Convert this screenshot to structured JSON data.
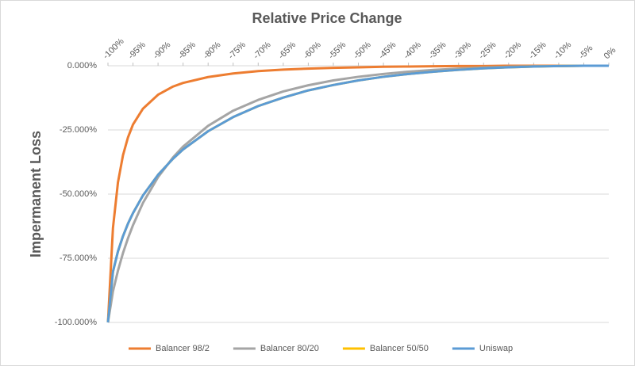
{
  "chart_data": {
    "type": "line",
    "title": "Relative Price Change",
    "y_label": "Impermanent Loss",
    "x": [
      -100,
      -99,
      -98,
      -97,
      -96,
      -95,
      -93,
      -90,
      -87,
      -85,
      -80,
      -75,
      -70,
      -65,
      -60,
      -55,
      -50,
      -45,
      -40,
      -35,
      -30,
      -25,
      -20,
      -15,
      -10,
      -5,
      0
    ],
    "series": [
      {
        "name": "Balancer 98/2",
        "color": "#ED7D31",
        "values": [
          -100,
          -63.2,
          -45.4,
          -34.9,
          -27.9,
          -22.9,
          -16.7,
          -11.3,
          -8.1,
          -6.7,
          -4.4,
          -3.0,
          -2.1,
          -1.5,
          -1.1,
          -0.8,
          -0.6,
          -0.4,
          -0.3,
          -0.2,
          -0.1,
          -0.1,
          0,
          0,
          0,
          0,
          0
        ]
      },
      {
        "name": "Balancer 80/20",
        "color": "#A5A5A5",
        "values": [
          -100,
          -87.9,
          -79.8,
          -73.0,
          -67.2,
          -62.1,
          -53.4,
          -43.4,
          -35.7,
          -31.5,
          -23.4,
          -17.5,
          -13.3,
          -10.0,
          -7.6,
          -5.7,
          -4.3,
          -3.2,
          -2.3,
          -1.6,
          -1.1,
          -0.7,
          -0.4,
          -0.2,
          -0.1,
          0,
          0
        ]
      },
      {
        "name": "Balancer 50/50",
        "color": "#FFC000",
        "values": [
          -100,
          -80.2,
          -72.3,
          -66.4,
          -61.5,
          -57.4,
          -50.5,
          -42.5,
          -36.2,
          -32.6,
          -25.5,
          -20.0,
          -15.7,
          -12.4,
          -9.6,
          -7.5,
          -5.7,
          -4.3,
          -3.2,
          -2.3,
          -1.6,
          -1.0,
          -0.6,
          -0.3,
          -0.1,
          0,
          0
        ]
      },
      {
        "name": "Uniswap",
        "color": "#5B9BD5",
        "values": [
          -100,
          -80.2,
          -72.3,
          -66.4,
          -61.5,
          -57.4,
          -50.5,
          -42.5,
          -36.2,
          -32.6,
          -25.5,
          -20.0,
          -15.7,
          -12.4,
          -9.6,
          -7.5,
          -5.7,
          -4.3,
          -3.2,
          -2.3,
          -1.6,
          -1.0,
          -0.6,
          -0.3,
          -0.1,
          0,
          0
        ]
      }
    ],
    "xlim": [
      -100,
      0
    ],
    "xticks": [
      {
        "value": -100,
        "label": "-100%"
      },
      {
        "value": -95,
        "label": "-95%"
      },
      {
        "value": -90,
        "label": "-90%"
      },
      {
        "value": -85,
        "label": "-85%"
      },
      {
        "value": -80,
        "label": "-80%"
      },
      {
        "value": -75,
        "label": "-75%"
      },
      {
        "value": -70,
        "label": "-70%"
      },
      {
        "value": -65,
        "label": "-65%"
      },
      {
        "value": -60,
        "label": "-60%"
      },
      {
        "value": -55,
        "label": "-55%"
      },
      {
        "value": -50,
        "label": "-50%"
      },
      {
        "value": -45,
        "label": "-45%"
      },
      {
        "value": -40,
        "label": "-40%"
      },
      {
        "value": -35,
        "label": "-35%"
      },
      {
        "value": -30,
        "label": "-30%"
      },
      {
        "value": -25,
        "label": "-25%"
      },
      {
        "value": -20,
        "label": "-20%"
      },
      {
        "value": -15,
        "label": "-15%"
      },
      {
        "value": -10,
        "label": "-10%"
      },
      {
        "value": -5,
        "label": "-5%"
      },
      {
        "value": 0,
        "label": "0%"
      }
    ],
    "ylim": [
      -100,
      0
    ],
    "yticks": [
      {
        "value": 0,
        "label": "0.000%"
      },
      {
        "value": -25,
        "label": "-25.000%"
      },
      {
        "value": -50,
        "label": "-50.000%"
      },
      {
        "value": -75,
        "label": "-75.000%"
      },
      {
        "value": -100,
        "label": "-100.000%"
      }
    ],
    "grid": true,
    "legend": "bottom"
  }
}
